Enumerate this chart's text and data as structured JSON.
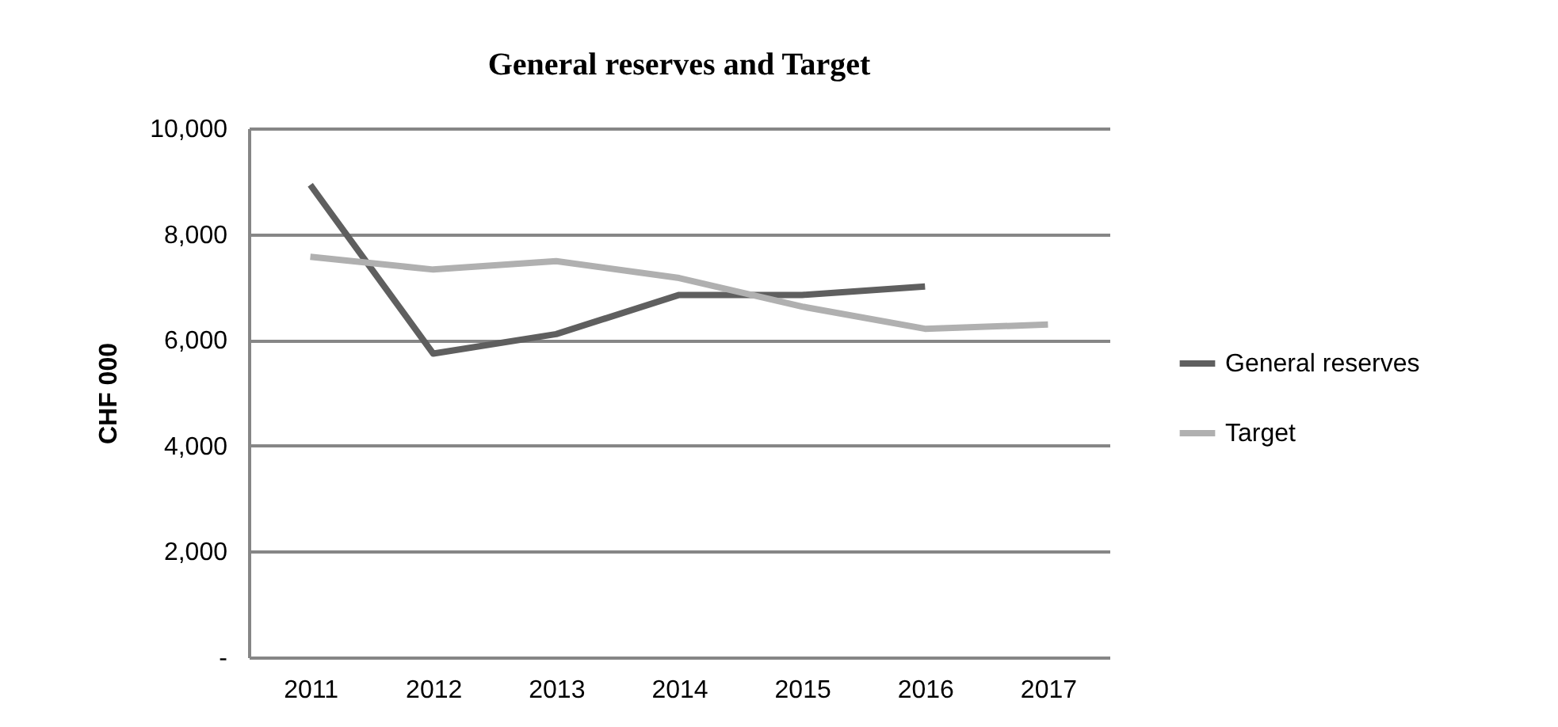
{
  "chart_data": {
    "type": "line",
    "title": "General reserves and Target",
    "ylabel": "CHF 000",
    "categories": [
      "2011",
      "2012",
      "2013",
      "2014",
      "2015",
      "2016",
      "2017"
    ],
    "series": [
      {
        "name": "General reserves",
        "color": "#5f5f5f",
        "values": [
          8930,
          5740,
          6110,
          6850,
          6850,
          7010,
          null
        ]
      },
      {
        "name": "Target",
        "color": "#b0b0b0",
        "values": [
          7570,
          7330,
          7490,
          7170,
          6630,
          6210,
          6290
        ]
      }
    ],
    "ylim": [
      0,
      10000
    ],
    "yticks": [
      {
        "value": 0,
        "label": "-"
      },
      {
        "value": 2000,
        "label": "2,000"
      },
      {
        "value": 4000,
        "label": "4,000"
      },
      {
        "value": 6000,
        "label": "6,000"
      },
      {
        "value": 8000,
        "label": "8,000"
      },
      {
        "value": 10000,
        "label": "10,000"
      }
    ],
    "grid": "y",
    "legend": "right",
    "marker": "none",
    "line_style": "solid"
  }
}
